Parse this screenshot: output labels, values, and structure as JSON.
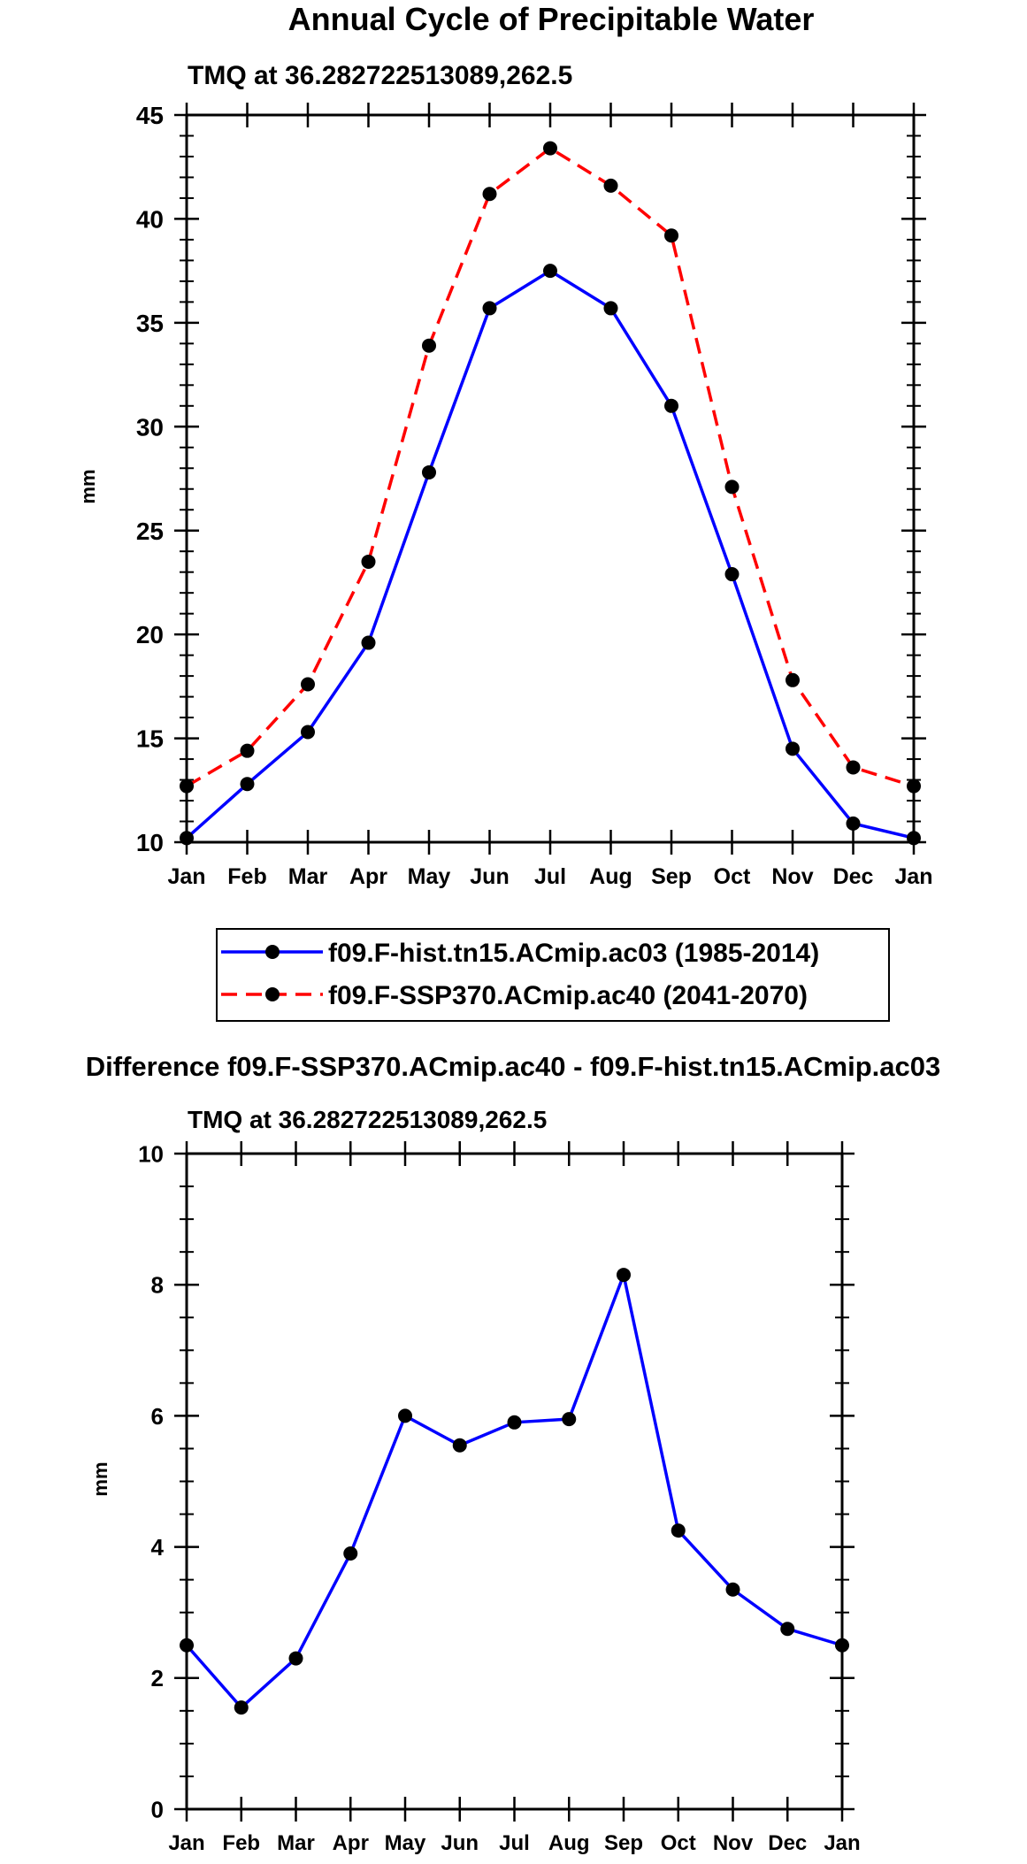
{
  "chart_data": [
    {
      "type": "line",
      "title": "Annual Cycle of Precipitable Water",
      "subtitle": "TMQ at 36.282722513089,262.5",
      "ylabel": "mm",
      "xlabel": "",
      "ylim": [
        10,
        45
      ],
      "yticks": [
        10,
        15,
        20,
        25,
        30,
        35,
        40,
        45
      ],
      "categories": [
        "Jan",
        "Feb",
        "Mar",
        "Apr",
        "May",
        "Jun",
        "Jul",
        "Aug",
        "Sep",
        "Oct",
        "Nov",
        "Dec",
        "Jan"
      ],
      "legend_position": "below",
      "series": [
        {
          "name": "f09.F-hist.tn15.ACmip.ac03 (1985-2014)",
          "color": "#0000ff",
          "dash": "solid",
          "values": [
            10.2,
            12.8,
            15.3,
            19.6,
            27.8,
            35.7,
            37.5,
            35.7,
            31.0,
            22.9,
            14.5,
            10.9,
            10.2
          ]
        },
        {
          "name": "f09.F-SSP370.ACmip.ac40 (2041-2070)",
          "color": "#ff0000",
          "dash": "dashed",
          "values": [
            12.7,
            14.4,
            17.6,
            23.5,
            33.9,
            41.2,
            43.4,
            41.6,
            39.2,
            27.1,
            17.8,
            13.6,
            12.7
          ]
        }
      ]
    },
    {
      "type": "line",
      "title": "Difference f09.F-SSP370.ACmip.ac40 - f09.F-hist.tn15.ACmip.ac03",
      "subtitle": "TMQ at 36.282722513089,262.5",
      "ylabel": "mm",
      "xlabel": "",
      "ylim": [
        0,
        10
      ],
      "yticks": [
        0,
        2,
        4,
        6,
        8,
        10
      ],
      "categories": [
        "Jan",
        "Feb",
        "Mar",
        "Apr",
        "May",
        "Jun",
        "Jul",
        "Aug",
        "Sep",
        "Oct",
        "Nov",
        "Dec",
        "Jan"
      ],
      "series": [
        {
          "name": "difference",
          "color": "#0000ff",
          "dash": "solid",
          "values": [
            2.5,
            1.55,
            2.3,
            3.9,
            6.0,
            5.55,
            5.9,
            5.95,
            8.15,
            4.25,
            3.35,
            2.75,
            2.5
          ]
        }
      ]
    }
  ]
}
